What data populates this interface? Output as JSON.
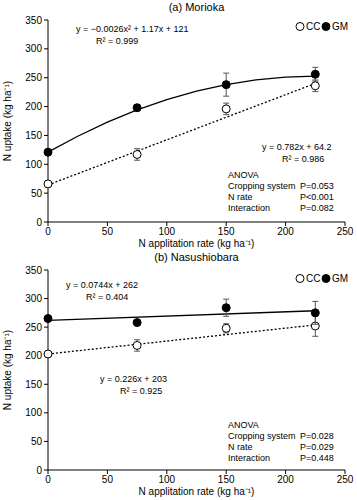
{
  "chart_data": [
    {
      "type": "scatter",
      "title": "(a) Morioka",
      "x_label": "N applitation rate (kg ha⁻¹)",
      "y_label": "N uptake (kg ha⁻¹)",
      "x": [
        0,
        75,
        150,
        225
      ],
      "xlim": [
        0,
        250
      ],
      "xticks": [
        0,
        50,
        100,
        150,
        200,
        250
      ],
      "ylim": [
        0,
        350
      ],
      "yticks": [
        0,
        50,
        100,
        150,
        200,
        250,
        300,
        350
      ],
      "grid": false,
      "legend": "top-right",
      "series": [
        {
          "name": "CC",
          "type": "scatter",
          "color": "#000000",
          "marker": "open-circle",
          "values": [
            66,
            117,
            196,
            236
          ],
          "errors": [
            3,
            10,
            10,
            10
          ]
        },
        {
          "name": "GM",
          "type": "scatter",
          "color": "#000000",
          "marker": "filled-circle",
          "values": [
            121,
            198,
            238,
            256
          ],
          "errors": [
            2,
            5,
            20,
            12
          ]
        },
        {
          "type": "line",
          "color": "#000000",
          "line_style": "dotted",
          "x": [
            0,
            225
          ],
          "values": [
            64.2,
            240.1
          ],
          "label": "y = 0.782x + 64.2",
          "r2_label": "R² = 0.986"
        },
        {
          "type": "line",
          "color": "#000000",
          "line_style": "solid",
          "x": [
            0,
            25,
            50,
            75,
            100,
            125,
            150,
            175,
            200,
            225
          ],
          "values": [
            121,
            148.6,
            173,
            194.1,
            212,
            226.6,
            238,
            246.1,
            251,
            252.6
          ],
          "label": "y = −0.0026x² + 1.17x + 121",
          "r2_label": "R² = 0.999"
        }
      ],
      "anova_title": "ANOVA",
      "anova_rows": [
        [
          "Cropping system",
          "P=0.053"
        ],
        [
          "N rate",
          "P<0.001"
        ],
        [
          "Interaction",
          "P=0.082"
        ]
      ]
    },
    {
      "type": "scatter",
      "title": "(b) Nasushiobara",
      "x_label": "N applitation rate (kg ha⁻¹)",
      "y_label": "N uptake (kg ha⁻¹)",
      "x": [
        0,
        75,
        150,
        225
      ],
      "xlim": [
        0,
        250
      ],
      "xticks": [
        0,
        50,
        100,
        150,
        200,
        250
      ],
      "ylim": [
        0,
        350
      ],
      "yticks": [
        0,
        50,
        100,
        150,
        200,
        250,
        300,
        350
      ],
      "grid": false,
      "legend": "top-right",
      "series": [
        {
          "name": "CC",
          "type": "scatter",
          "color": "#000000",
          "marker": "open-circle",
          "values": [
            203,
            218,
            248,
            252
          ],
          "errors": [
            3,
            10,
            8,
            18
          ]
        },
        {
          "name": "GM",
          "type": "scatter",
          "color": "#000000",
          "marker": "filled-circle",
          "values": [
            265,
            258,
            284,
            275
          ],
          "errors": [
            2,
            5,
            15,
            20
          ]
        },
        {
          "type": "line",
          "color": "#000000",
          "line_style": "dotted",
          "x": [
            0,
            225
          ],
          "values": [
            203,
            253.9
          ],
          "label": "y = 0.226x + 203",
          "r2_label": "R² = 0.925"
        },
        {
          "type": "line",
          "color": "#000000",
          "line_style": "solid",
          "x": [
            0,
            225
          ],
          "values": [
            262,
            278.7
          ],
          "label": "y = 0.0744x + 262",
          "r2_label": "R² = 0.404"
        }
      ],
      "anova_title": "ANOVA",
      "anova_rows": [
        [
          "Cropping system",
          "P=0.028"
        ],
        [
          "N rate",
          "P=0.029"
        ],
        [
          "Interaction",
          "P=0.448"
        ]
      ]
    }
  ]
}
